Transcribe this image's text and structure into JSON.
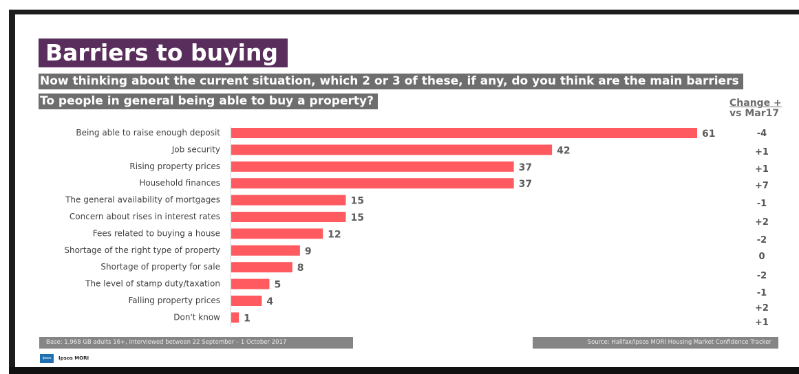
{
  "title": "Barriers to buying",
  "question_line1": "Now thinking about the current situation, which 2 or 3 of these, if any, do you think are the main barriers",
  "question_line2": "To people in general being able to buy a property?",
  "change_header_line1": "Change +",
  "change_header_line2": "vs Mar17",
  "base_note": "Base: 1,968 GB adults 16+, interviewed between 22 September – 1 October 2017",
  "source_note": "Source: Halifax/Ipsos MORI Housing Market Confidence Tracker",
  "logo_text": "Ipsos MORI",
  "logo_mark": "Ipsos",
  "colors": {
    "bar": "#ff5a5f",
    "title_bg": "#5a2e5c",
    "question_bg": "#6e6e6e",
    "footer_bg": "#858585",
    "logo_blue": "#1e6fb3"
  },
  "chart_data": {
    "type": "bar",
    "orientation": "horizontal",
    "categories": [
      "Being able to raise enough deposit",
      "Job security",
      "Rising property prices",
      "Household finances",
      "The general availability of mortgages",
      "Concern about rises in interest rates",
      "Fees related to buying a house",
      "Shortage of the right type of property",
      "Shortage of property for sale",
      "The level of stamp duty/taxation",
      "Falling property prices",
      "Don't know"
    ],
    "values": [
      61,
      42,
      37,
      37,
      15,
      15,
      12,
      9,
      8,
      5,
      4,
      1
    ],
    "change_vs_mar17": [
      "-4",
      "+1",
      "+1",
      "+7",
      "-1",
      "+2",
      "-2",
      "0",
      "-2",
      "-1",
      "+2",
      "+1"
    ],
    "xlim": [
      0,
      61
    ],
    "grid": false,
    "legend": "none"
  }
}
